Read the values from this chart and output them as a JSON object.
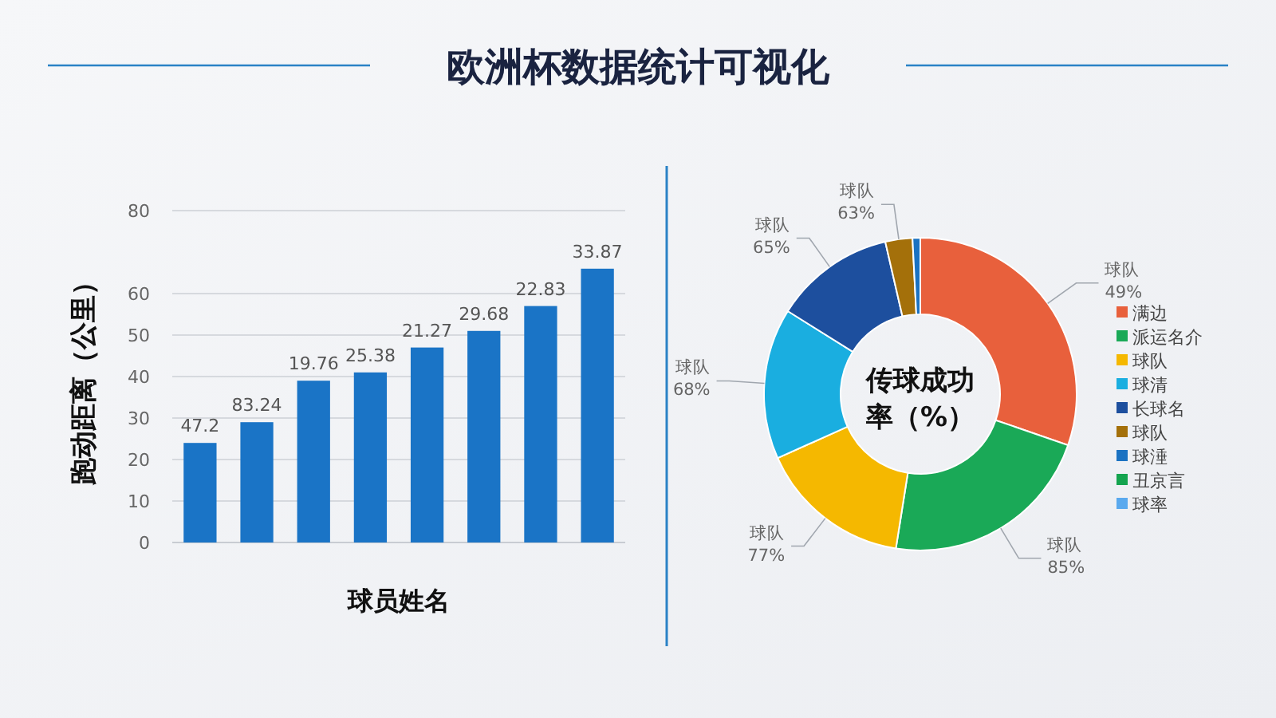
{
  "chart_data": [
    {
      "type": "bar",
      "title": "欧洲杯数据统计可视化",
      "xlabel": "球员姓名",
      "ylabel": "跑动距离（公里）",
      "categories": [
        null,
        null,
        null,
        null,
        null,
        null,
        null,
        null
      ],
      "values": [
        24,
        29,
        39,
        41,
        47,
        51,
        57,
        66
      ],
      "annotations": [
        "47.2",
        "83.24",
        "19.76",
        "25.38",
        "21.27",
        "29.68",
        "22.83",
        "33.87"
      ],
      "color": "#1a74c6",
      "ylim": [
        0,
        80
      ],
      "yticks": [
        0,
        10,
        20,
        30,
        40,
        50,
        60,
        80
      ],
      "grid": "y"
    },
    {
      "type": "donut",
      "title": "传球成功率（%）",
      "categories": [
        "满边",
        "派运名介",
        "球队",
        "球清",
        "长球名",
        "球队",
        "球涶",
        "丑京言",
        "球率"
      ],
      "values": [
        30.3,
        22.2,
        15.8,
        15.6,
        12.5,
        2.8,
        0.8,
        0,
        0
      ],
      "colors": [
        "#e8603c",
        "#1aa957",
        "#f5b800",
        "#1aaee0",
        "#1d4f9e",
        "#a4700a",
        "#1b72c2",
        "#14a44f",
        "#5aa9ee"
      ],
      "value_labels": [
        "球队\n49%",
        "球队\n85%",
        "球队\n77%",
        "球队\n68%",
        "球队\n65%",
        "球队\n63%",
        null,
        null,
        null
      ],
      "legend": "right"
    }
  ]
}
